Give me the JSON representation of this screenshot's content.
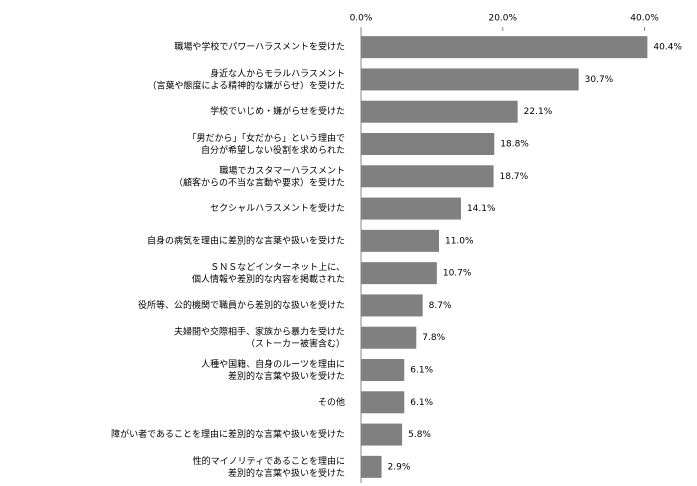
{
  "chart_data": {
    "type": "barh",
    "categories": [
      "職場や学校でパワーハラスメントを受けた",
      "身近な人からモラルハラスメント\n（言葉や態度による精神的な嫌がらせ）を受けた",
      "学校でいじめ・嫌がらせを受けた",
      "「男だから」「女だから」という理由で\n自分が希望しない役割を求められた",
      "職場でカスタマーハラスメント\n（顧客からの不当な言動や要求）を受けた",
      "セクシャルハラスメントを受けた",
      "自身の病気を理由に差別的な言葉や扱いを受けた",
      "ＳＮＳなどインターネット上に、\n個人情報や差別的な内容を掲載された",
      "役所等、公的機関で職員から差別的な扱いを受けた",
      "夫婦間や交際相手、家族から暴力を受けた\n（ストーカー被害含む）",
      "人種や国籍、自身のルーツを理由に\n差別的な言葉や扱いを受けた",
      "その他",
      "障がい者であることを理由に差別的な言葉や扱いを受けた",
      "性的マイノリティであることを理由に\n差別的な言葉や扱いを受けた"
    ],
    "values": [
      40.4,
      30.7,
      22.1,
      18.8,
      18.7,
      14.1,
      11.0,
      10.7,
      8.7,
      7.8,
      6.1,
      6.1,
      5.8,
      2.9
    ],
    "value_labels": [
      "40.4%",
      "30.7%",
      "22.1%",
      "18.8%",
      "18.7%",
      "14.1%",
      "11.0%",
      "10.7%",
      "8.7%",
      "7.8%",
      "6.1%",
      "6.1%",
      "5.8%",
      "2.9%"
    ],
    "color": "#808080",
    "xlim": [
      0,
      45
    ],
    "xticks": [
      {
        "value": 0,
        "label": "0.0%"
      },
      {
        "value": 20,
        "label": "20.0%"
      },
      {
        "value": 40,
        "label": "40.0%"
      }
    ]
  }
}
